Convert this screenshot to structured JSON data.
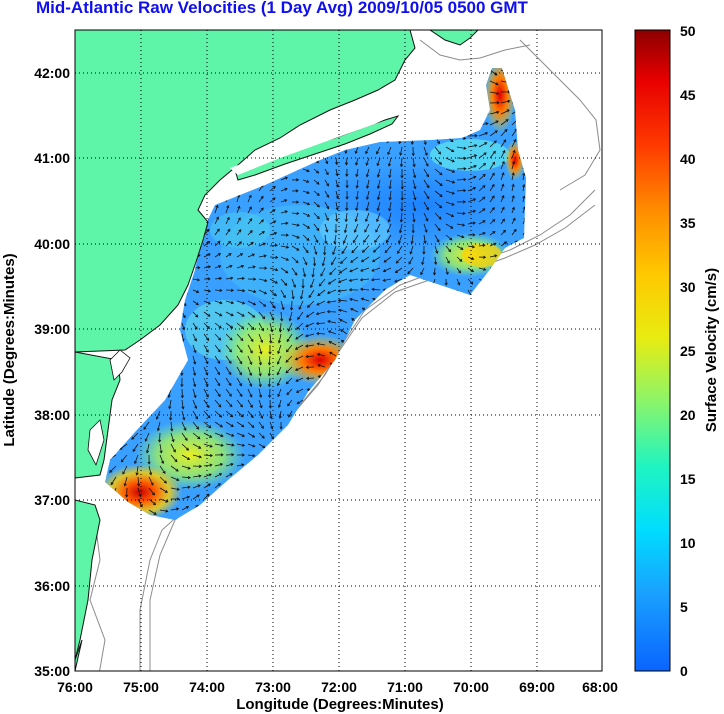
{
  "title": "Mid-Atlantic Raw Velocities (1 Day Avg) 2009/10/05 0500 GMT",
  "xlabel": "Longitude (Degrees:Minutes)",
  "ylabel": "Latitude (Degrees:Minutes)",
  "x_ticks": [
    "76:00",
    "75:00",
    "74:00",
    "73:00",
    "72:00",
    "71:00",
    "70:00",
    "69:00",
    "68:00"
  ],
  "y_ticks": [
    "42:00",
    "41:00",
    "40:00",
    "39:00",
    "38:00",
    "37:00",
    "36:00",
    "35:00"
  ],
  "colorbar": {
    "label": "Surface Velocity (cm/s)",
    "ticks": [
      "50",
      "45",
      "40",
      "35",
      "30",
      "25",
      "20",
      "15",
      "10",
      "5",
      "0"
    ],
    "range": [
      0,
      50
    ],
    "colormap": "jet"
  },
  "colors": {
    "land": "#5ef5a8",
    "title": "#1010ee",
    "bathymetry": "#888888",
    "arrows": "#111111"
  },
  "map": {
    "lon_range": [
      -76,
      -68
    ],
    "lat_range": [
      35,
      42.5
    ],
    "grid": "dotted"
  }
}
